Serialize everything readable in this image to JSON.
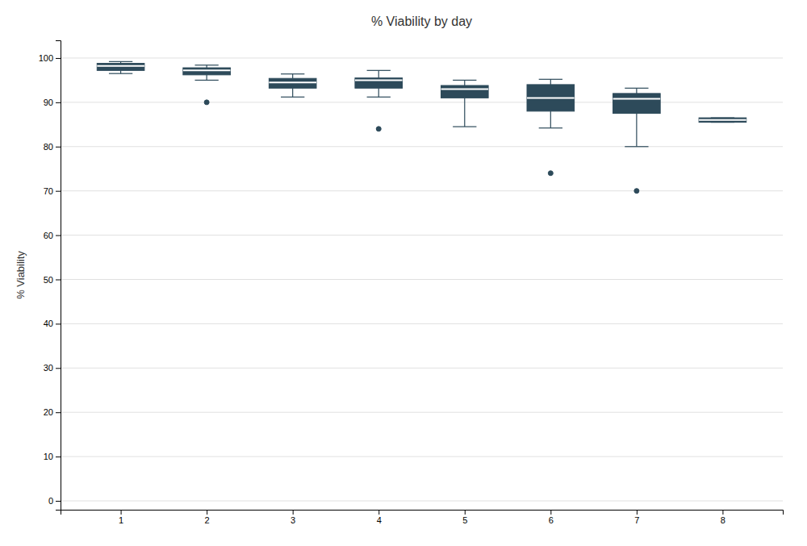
{
  "chart_data": {
    "type": "box",
    "title": "% Viability by day",
    "ylabel": "% Viability",
    "x": [
      1,
      2,
      3,
      4,
      5,
      6,
      7,
      8
    ],
    "q1": [
      97.2,
      96.2,
      93.2,
      93.2,
      91.0,
      88.0,
      87.5,
      85.5
    ],
    "q3": [
      98.8,
      97.8,
      95.4,
      95.5,
      93.8,
      94.0,
      92.0,
      86.5
    ],
    "median": [
      98.2,
      97.2,
      94.5,
      95.0,
      93.0,
      91.0,
      90.8,
      86.0
    ],
    "whislo": [
      96.5,
      95.0,
      91.2,
      91.2,
      84.5,
      84.2,
      80.0,
      85.5
    ],
    "whishi": [
      99.2,
      98.4,
      96.4,
      97.2,
      95.0,
      95.2,
      93.2,
      86.5
    ],
    "fliers": [
      [],
      [
        90.0
      ],
      [],
      [
        84.0
      ],
      [],
      [
        74.0
      ],
      [
        70.0
      ],
      []
    ],
    "color": "#2d4a5a",
    "xlim": [
      0.3,
      8.7
    ],
    "xticks": [
      1,
      2,
      3,
      4,
      5,
      6,
      7,
      8
    ],
    "ylim": [
      -2,
      104
    ],
    "yticks": [
      0,
      10,
      20,
      30,
      40,
      50,
      60,
      70,
      80,
      90,
      100
    ],
    "grid": true
  }
}
